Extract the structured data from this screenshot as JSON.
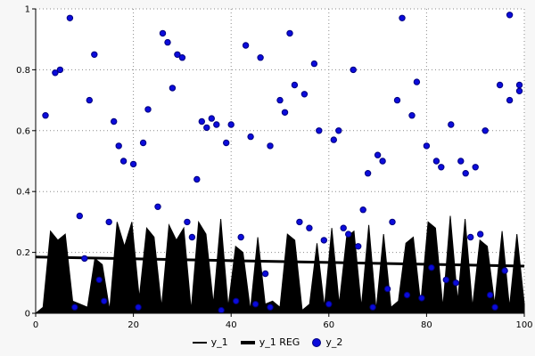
{
  "chart_data": {
    "type": "mixed",
    "title": "",
    "xlabel": "",
    "ylabel": "",
    "xlim": [
      0,
      100
    ],
    "ylim": [
      0,
      1
    ],
    "xticks": [
      0,
      20,
      40,
      60,
      80,
      100
    ],
    "yticks": [
      0,
      0.2,
      0.4,
      0.6,
      0.8,
      1
    ],
    "grid": true,
    "legend_position": "bottom",
    "colors": {
      "plot_bg": "#ffffff",
      "outer_bg": "#f7f7f7",
      "grid": "#8a8a8a",
      "axis": "#000000"
    },
    "series": [
      {
        "name": "y_1",
        "type": "area",
        "color": "#000000",
        "values": [
          0.0,
          0.02,
          0.27,
          0.24,
          0.26,
          0.04,
          0.03,
          0.02,
          0.18,
          0.16,
          0.01,
          0.3,
          0.22,
          0.3,
          0.05,
          0.28,
          0.25,
          0.02,
          0.29,
          0.24,
          0.28,
          0.01,
          0.3,
          0.26,
          0.03,
          0.31,
          0.02,
          0.22,
          0.2,
          0.01,
          0.25,
          0.03,
          0.04,
          0.02,
          0.26,
          0.24,
          0.01,
          0.03,
          0.23,
          0.02,
          0.28,
          0.03,
          0.25,
          0.27,
          0.02,
          0.29,
          0.01,
          0.26,
          0.02,
          0.04,
          0.23,
          0.25,
          0.03,
          0.3,
          0.28,
          0.02,
          0.32,
          0.04,
          0.31,
          0.02,
          0.24,
          0.22,
          0.03,
          0.27,
          0.02,
          0.26,
          0.03
        ]
      },
      {
        "name": "y_1 REG",
        "type": "line",
        "color": "#000000",
        "x": [
          0,
          100
        ],
        "values": [
          0.185,
          0.155
        ]
      },
      {
        "name": "y_2",
        "type": "scatter",
        "color": "#0b0bdb",
        "edge": "#000080",
        "points": [
          [
            2,
            0.65
          ],
          [
            4,
            0.79
          ],
          [
            5,
            0.8
          ],
          [
            7,
            0.97
          ],
          [
            8,
            0.02
          ],
          [
            9,
            0.32
          ],
          [
            10,
            0.18
          ],
          [
            11,
            0.7
          ],
          [
            12,
            0.85
          ],
          [
            13,
            0.11
          ],
          [
            14,
            0.04
          ],
          [
            15,
            0.3
          ],
          [
            16,
            0.63
          ],
          [
            17,
            0.55
          ],
          [
            18,
            0.5
          ],
          [
            20,
            0.49
          ],
          [
            21,
            0.02
          ],
          [
            22,
            0.56
          ],
          [
            23,
            0.67
          ],
          [
            25,
            0.35
          ],
          [
            26,
            0.92
          ],
          [
            27,
            0.89
          ],
          [
            28,
            0.74
          ],
          [
            29,
            0.85
          ],
          [
            30,
            0.84
          ],
          [
            31,
            0.3
          ],
          [
            32,
            0.25
          ],
          [
            33,
            0.44
          ],
          [
            34,
            0.63
          ],
          [
            35,
            0.61
          ],
          [
            36,
            0.64
          ],
          [
            37,
            0.62
          ],
          [
            38,
            0.01
          ],
          [
            39,
            0.56
          ],
          [
            40,
            0.62
          ],
          [
            41,
            0.04
          ],
          [
            42,
            0.25
          ],
          [
            43,
            0.88
          ],
          [
            44,
            0.58
          ],
          [
            45,
            0.03
          ],
          [
            46,
            0.84
          ],
          [
            47,
            0.13
          ],
          [
            48,
            0.55
          ],
          [
            48,
            0.02
          ],
          [
            50,
            0.7
          ],
          [
            51,
            0.66
          ],
          [
            52,
            0.92
          ],
          [
            53,
            0.75
          ],
          [
            54,
            0.3
          ],
          [
            55,
            0.72
          ],
          [
            56,
            0.28
          ],
          [
            57,
            0.82
          ],
          [
            58,
            0.6
          ],
          [
            59,
            0.24
          ],
          [
            60,
            0.03
          ],
          [
            61,
            0.57
          ],
          [
            62,
            0.6
          ],
          [
            63,
            0.28
          ],
          [
            64,
            0.26
          ],
          [
            65,
            0.8
          ],
          [
            66,
            0.22
          ],
          [
            67,
            0.34
          ],
          [
            68,
            0.46
          ],
          [
            69,
            0.02
          ],
          [
            70,
            0.52
          ],
          [
            71,
            0.5
          ],
          [
            72,
            0.08
          ],
          [
            73,
            0.3
          ],
          [
            74,
            0.7
          ],
          [
            75,
            0.97
          ],
          [
            76,
            0.06
          ],
          [
            77,
            0.65
          ],
          [
            78,
            0.76
          ],
          [
            79,
            0.05
          ],
          [
            80,
            0.55
          ],
          [
            81,
            0.15
          ],
          [
            82,
            0.5
          ],
          [
            83,
            0.48
          ],
          [
            84,
            0.11
          ],
          [
            85,
            0.62
          ],
          [
            86,
            0.1
          ],
          [
            87,
            0.5
          ],
          [
            88,
            0.46
          ],
          [
            89,
            0.25
          ],
          [
            90,
            0.48
          ],
          [
            91,
            0.26
          ],
          [
            92,
            0.6
          ],
          [
            93,
            0.06
          ],
          [
            94,
            0.02
          ],
          [
            95,
            0.75
          ],
          [
            96,
            0.14
          ],
          [
            97,
            0.98
          ],
          [
            97,
            0.7
          ],
          [
            99,
            0.75
          ],
          [
            99,
            0.73
          ]
        ]
      }
    ]
  },
  "legend": {
    "items": [
      {
        "label": "y_1"
      },
      {
        "label": "y_1 REG"
      },
      {
        "label": "y_2"
      }
    ]
  }
}
